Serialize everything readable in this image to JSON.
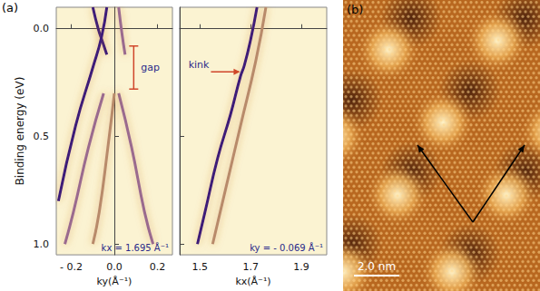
{
  "panel_labels": [
    "(a)",
    "(b)"
  ],
  "chart_data": [
    {
      "type": "line",
      "x_label": "ky(Å⁻¹)",
      "y_label": "Binding energy (eV)",
      "xlim": [
        -0.27,
        0.27
      ],
      "xticks": [
        {
          "value": -0.2,
          "label": "- 0.2"
        },
        {
          "value": 0,
          "label": "0.0"
        },
        0.2
      ],
      "ylim": [
        -0.1,
        1.05
      ],
      "yticks": [
        {
          "value": 0,
          "label": "0.0"
        },
        0.5,
        {
          "value": 1,
          "label": "1.0"
        }
      ],
      "series": [
        {
          "color": "#3d1a78",
          "x": [
            -0.1,
            -0.075,
            -0.055,
            -0.035
          ],
          "values": [
            -0.1,
            0.0,
            0.06,
            0.12
          ]
        },
        {
          "color": "#3d1a78",
          "x": [
            -0.035,
            -0.06,
            -0.1,
            -0.18,
            -0.26
          ],
          "values": [
            -0.1,
            0.04,
            0.18,
            0.45,
            0.8
          ]
        },
        {
          "color": "#9a6a8e",
          "x": [
            0.02,
            0.035,
            0.05
          ],
          "values": [
            -0.1,
            0.02,
            0.12
          ]
        },
        {
          "color": "#9a6a8e",
          "x": [
            -0.05,
            -0.12,
            -0.19,
            -0.23
          ],
          "values": [
            0.3,
            0.55,
            0.85,
            1.0
          ]
        },
        {
          "color": "#9a6a8e",
          "x": [
            0.02,
            0.08,
            0.14,
            0.18
          ],
          "values": [
            0.3,
            0.55,
            0.85,
            1.0
          ]
        },
        {
          "color": "#b88a6a",
          "x": [
            0.0,
            -0.03,
            -0.07,
            -0.1
          ],
          "values": [
            0.3,
            0.55,
            0.85,
            1.0
          ]
        }
      ],
      "annotations": [
        {
          "text": "gap",
          "x": 0.09,
          "y": [
            0.08,
            0.28
          ]
        },
        {
          "text": "kx = 1.695 Å⁻¹"
        }
      ]
    },
    {
      "type": "line",
      "x_label": "kx(Å⁻¹)",
      "xlim": [
        1.42,
        2.0
      ],
      "xticks": [
        1.5,
        1.7,
        1.9
      ],
      "ylim": [
        -0.1,
        1.05
      ],
      "yticks": [
        {
          "value": 0,
          "label": "0.0"
        },
        0.5,
        {
          "value": 1,
          "label": "1.0"
        }
      ],
      "tick_labels": "x",
      "series": [
        {
          "color": "#3d1a78",
          "x": [
            1.725,
            1.7,
            1.675,
            1.66,
            1.62,
            1.57,
            1.52,
            1.49
          ],
          "values": [
            -0.1,
            0.05,
            0.17,
            0.22,
            0.4,
            0.6,
            0.85,
            1.0
          ]
        },
        {
          "color": "#b88a6a",
          "x": [
            1.76,
            1.72,
            1.66,
            1.6,
            1.55
          ],
          "values": [
            -0.1,
            0.15,
            0.45,
            0.75,
            1.0
          ]
        }
      ],
      "annotations": [
        {
          "text": "kink",
          "x": 1.665,
          "y": 0.2
        },
        {
          "text": "ky = - 0.069 Å⁻¹"
        }
      ]
    }
  ],
  "image": {
    "scale_bar": "2.0 nm"
  }
}
